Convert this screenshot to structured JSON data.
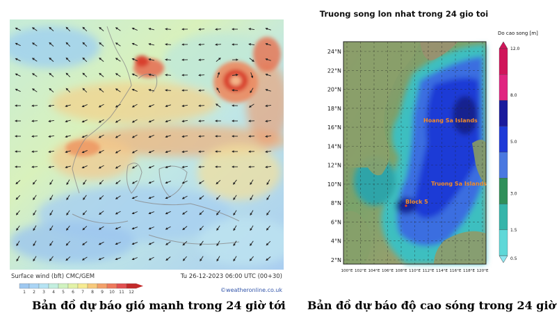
{
  "wind_map": {
    "footer_left": "Surface wind (bft) CMC/GEM",
    "footer_right": "Tu 26-12-2023 06:00 UTC (00+30)",
    "credit": "©weatheronline.co.uk",
    "scale_labels": [
      "1",
      "2",
      "3",
      "4",
      "5",
      "6",
      "7",
      "8",
      "9",
      "10",
      "11",
      "12"
    ],
    "scale_colors": [
      "#9fc8f0",
      "#aad4f5",
      "#b6e3f3",
      "#c3eedf",
      "#d0f2c0",
      "#e2f2a8",
      "#f6eb93",
      "#f7c97c",
      "#f3a16a",
      "#ee7a5c",
      "#e25050",
      "#c42a2a"
    ],
    "caption": "Bản đồ dự báo gió mạnh trong 24 giờ tới"
  },
  "wave_map": {
    "title": "Truong song lon nhat trong 24 gio toi",
    "colorbar_title": "Do cao song [m]",
    "colorbar_labels": [
      "12.0",
      "8.0",
      "5.0",
      "3.0",
      "1.5",
      "0.5"
    ],
    "colorbar_colors": [
      "#d0145a",
      "#e02480",
      "#1a1a9c",
      "#1e3ad8",
      "#4a78e0",
      "#2f8f5a",
      "#35b5aa",
      "#5fd8d8"
    ],
    "lat_labels": [
      "24°N",
      "22°N",
      "20°N",
      "18°N",
      "16°N",
      "14°N",
      "12°N",
      "10°N",
      "8°N",
      "6°N",
      "4°N",
      "2°N"
    ],
    "lon_labels": [
      "100°E",
      "102°E",
      "104°E",
      "106°E",
      "108°E",
      "110°E",
      "112°E",
      "114°E",
      "116°E",
      "118°E",
      "120°E"
    ],
    "places": [
      "Hoang Sa Islands",
      "Truong Sa Islands",
      "Block 5"
    ],
    "caption": "Bản đồ dự báo độ cao sóng trong 24 giờ tới"
  }
}
